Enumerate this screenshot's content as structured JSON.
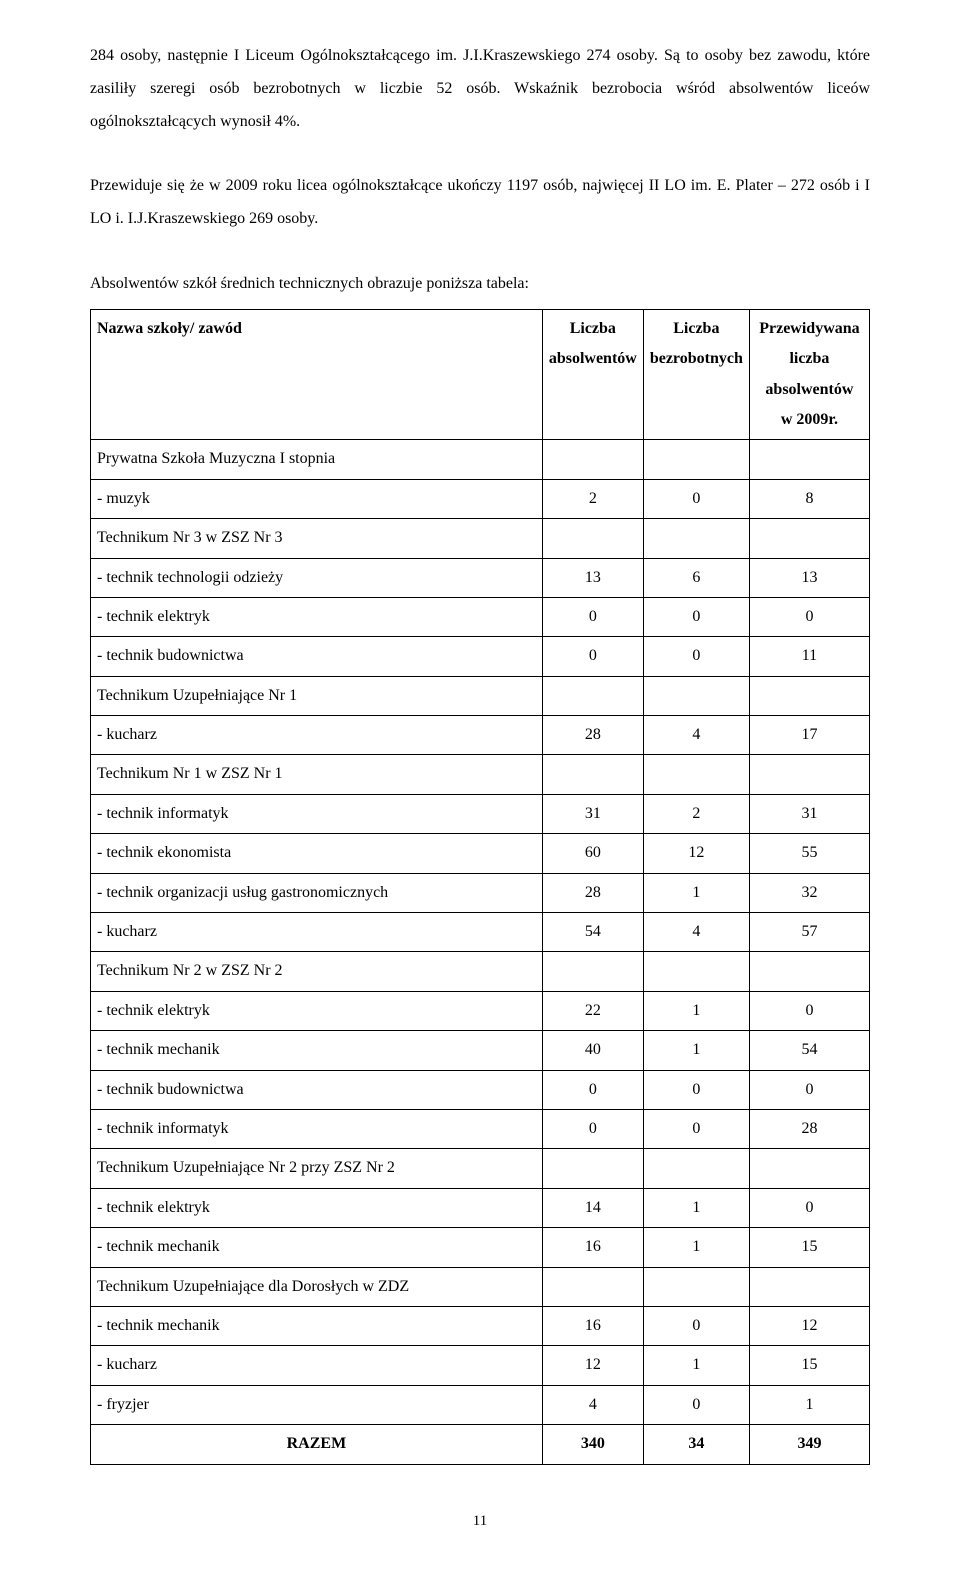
{
  "paragraph1": "284 osoby, następnie I Liceum Ogólnokształcącego im. J.I.Kraszewskiego 274 osoby. Są to osoby bez zawodu, które zasiliły szeregi osób bezrobotnych w liczbie 52 osób. Wskaźnik bezrobocia wśród absolwentów liceów ogólnokształcących wynosił 4%.",
  "paragraph2": "Przewiduje się że w 2009 roku licea ogólnokształcące ukończy 1197 osób, najwięcej II LO im. E. Plater – 272 osób i I LO i. I.J.Kraszewskiego 269 osoby.",
  "subhead_text": "Absolwentów szkół średnich technicznych obrazuje poniższa tabela:",
  "header": {
    "col1": "Nazwa szkoły/ zawód",
    "col2_top": "Liczba",
    "col2_bot": "absolwentów",
    "col3_top": "Liczba",
    "col3_bot": "bezrobotnych",
    "col4_top": "Przewidywana liczba",
    "col4_mid": "absolwentów",
    "col4_bot": "w 2009r."
  },
  "rows": [
    {
      "label": "Prywatna Szkoła Muzyczna I stopnia",
      "a": "",
      "b": "",
      "c": "",
      "group": true
    },
    {
      "label": "- muzyk",
      "a": "2",
      "b": "0",
      "c": "8"
    },
    {
      "label": "Technikum Nr 3 w ZSZ Nr 3",
      "a": "",
      "b": "",
      "c": "",
      "group": true
    },
    {
      "label": "- technik technologii odzieży",
      "a": "13",
      "b": "6",
      "c": "13"
    },
    {
      "label": "- technik elektryk",
      "a": "0",
      "b": "0",
      "c": "0"
    },
    {
      "label": "- technik budownictwa",
      "a": "0",
      "b": "0",
      "c": "11"
    },
    {
      "label": "Technikum Uzupełniające Nr 1",
      "a": "",
      "b": "",
      "c": "",
      "group": true
    },
    {
      "label": "- kucharz",
      "a": "28",
      "b": "4",
      "c": "17"
    },
    {
      "label": "Technikum Nr 1 w ZSZ Nr 1",
      "a": "",
      "b": "",
      "c": "",
      "group": true
    },
    {
      "label": "- technik informatyk",
      "a": "31",
      "b": "2",
      "c": "31"
    },
    {
      "label": "- technik ekonomista",
      "a": "60",
      "b": "12",
      "c": "55"
    },
    {
      "label": "- technik organizacji usług gastronomicznych",
      "a": "28",
      "b": "1",
      "c": "32"
    },
    {
      "label": "- kucharz",
      "a": "54",
      "b": "4",
      "c": "57"
    },
    {
      "label": "Technikum Nr 2 w ZSZ Nr 2",
      "a": "",
      "b": "",
      "c": "",
      "group": true
    },
    {
      "label": "- technik elektryk",
      "a": "22",
      "b": "1",
      "c": "0"
    },
    {
      "label": "- technik mechanik",
      "a": "40",
      "b": "1",
      "c": "54"
    },
    {
      "label": "- technik budownictwa",
      "a": "0",
      "b": "0",
      "c": "0"
    },
    {
      "label": "- technik informatyk",
      "a": "0",
      "b": "0",
      "c": "28"
    },
    {
      "label": "Technikum Uzupełniające Nr 2 przy ZSZ Nr 2",
      "a": "",
      "b": "",
      "c": "",
      "group": true
    },
    {
      "label": "- technik elektryk",
      "a": "14",
      "b": "1",
      "c": "0"
    },
    {
      "label": "- technik mechanik",
      "a": "16",
      "b": "1",
      "c": "15"
    },
    {
      "label": "Technikum Uzupełniające dla Dorosłych w ZDZ",
      "a": "",
      "b": "",
      "c": "",
      "group": true
    },
    {
      "label": "- technik mechanik",
      "a": "16",
      "b": "0",
      "c": "12"
    },
    {
      "label": "- kucharz",
      "a": "12",
      "b": "1",
      "c": "15"
    },
    {
      "label": "- fryzjer",
      "a": "4",
      "b": "0",
      "c": "1"
    }
  ],
  "total": {
    "label": "RAZEM",
    "a": "340",
    "b": "34",
    "c": "349"
  },
  "page_number": "11"
}
